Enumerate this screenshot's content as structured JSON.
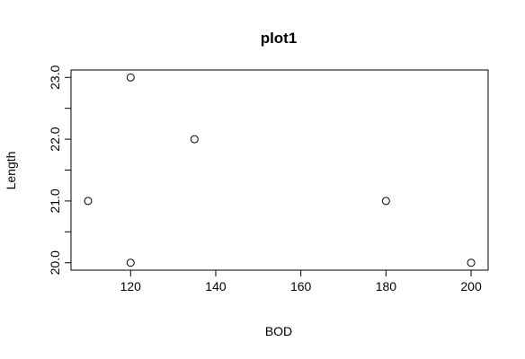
{
  "chart_data": {
    "type": "scatter",
    "title": "plot1",
    "xlabel": "BOD",
    "ylabel": "Length",
    "xlim": [
      106,
      204
    ],
    "ylim": [
      19.88,
      23.12
    ],
    "x_ticks": [
      120,
      140,
      160,
      180,
      200
    ],
    "x_tick_labels": [
      "120",
      "140",
      "160",
      "180",
      "200"
    ],
    "y_ticks": [
      20,
      20.5,
      21,
      21.5,
      22,
      22.5,
      23
    ],
    "y_tick_labels": [
      "20.0",
      "",
      "21.0",
      "",
      "22.0",
      "",
      "23.0"
    ],
    "grid": false,
    "points": [
      {
        "x": 110,
        "y": 21
      },
      {
        "x": 120,
        "y": 23
      },
      {
        "x": 120,
        "y": 20
      },
      {
        "x": 135,
        "y": 22
      },
      {
        "x": 180,
        "y": 21
      },
      {
        "x": 200,
        "y": 20
      }
    ]
  }
}
